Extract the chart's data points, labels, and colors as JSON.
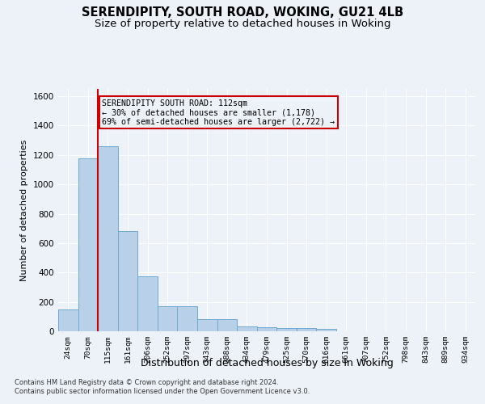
{
  "title1": "SERENDIPITY, SOUTH ROAD, WOKING, GU21 4LB",
  "title2": "Size of property relative to detached houses in Woking",
  "xlabel": "Distribution of detached houses by size in Woking",
  "ylabel": "Number of detached properties",
  "footer1": "Contains HM Land Registry data © Crown copyright and database right 2024.",
  "footer2": "Contains public sector information licensed under the Open Government Licence v3.0.",
  "categories": [
    "24sqm",
    "70sqm",
    "115sqm",
    "161sqm",
    "206sqm",
    "252sqm",
    "297sqm",
    "343sqm",
    "388sqm",
    "434sqm",
    "479sqm",
    "525sqm",
    "570sqm",
    "616sqm",
    "661sqm",
    "707sqm",
    "752sqm",
    "798sqm",
    "843sqm",
    "889sqm",
    "934sqm"
  ],
  "values": [
    150,
    1175,
    1260,
    680,
    375,
    170,
    170,
    80,
    80,
    35,
    30,
    20,
    20,
    15,
    0,
    0,
    0,
    0,
    0,
    0,
    0
  ],
  "bar_color": "#b8d0e8",
  "bar_edge_color": "#6aaad4",
  "highlight_line_color": "#cc0000",
  "annotation_line1": "SERENDIPITY SOUTH ROAD: 112sqm",
  "annotation_line2": "← 30% of detached houses are smaller (1,178)",
  "annotation_line3": "69% of semi-detached houses are larger (2,722) →",
  "annotation_box_color": "#cc0000",
  "ylim": [
    0,
    1650
  ],
  "yticks": [
    0,
    200,
    400,
    600,
    800,
    1000,
    1200,
    1400,
    1600
  ],
  "bg_color": "#edf2f9",
  "grid_color": "#ffffff",
  "title1_fontsize": 10.5,
  "title2_fontsize": 9.5,
  "ylabel_fontsize": 8,
  "xlabel_fontsize": 9
}
